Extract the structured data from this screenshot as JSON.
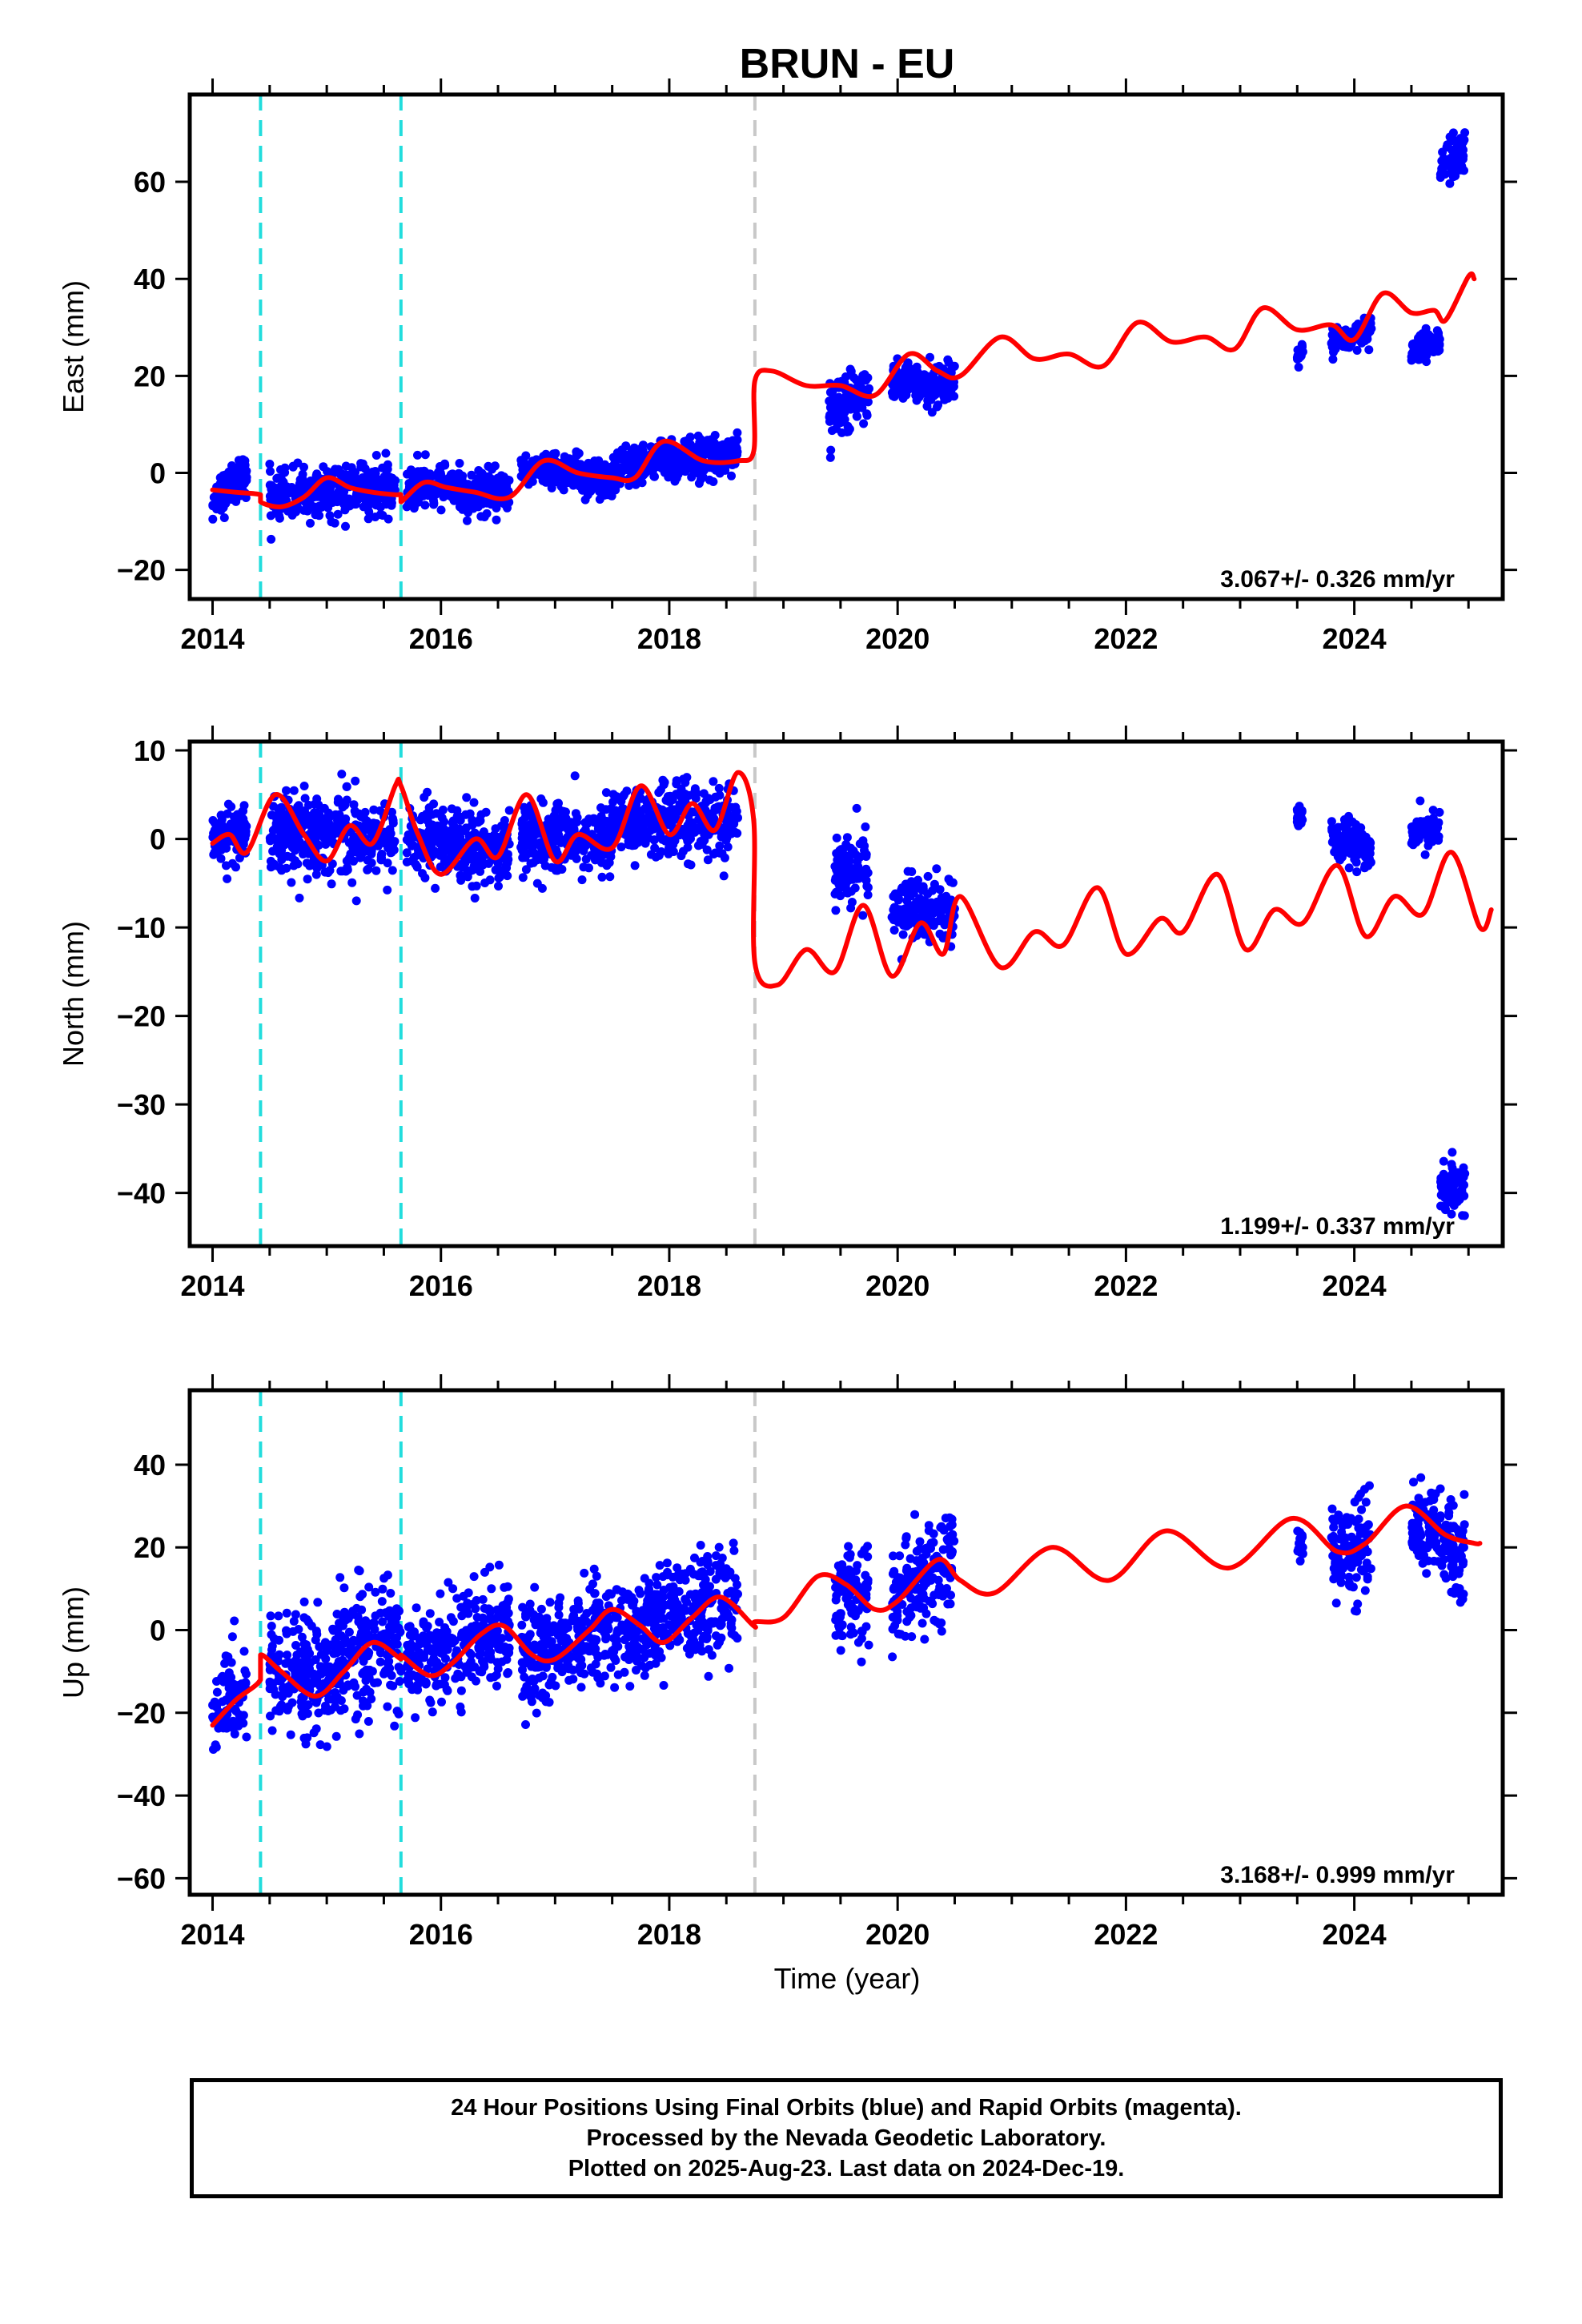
{
  "figure": {
    "title": "BRUN - EU",
    "x_axis_label": "Time (year)",
    "caption": [
      "24 Hour Positions Using Final Orbits (blue) and Rapid Orbits (magenta).",
      "Processed by the Nevada Geodetic Laboratory.",
      "Plotted on 2025-Aug-23. Last data on 2024-Dec-19."
    ],
    "colors": {
      "points": "#0000ff",
      "model": "#ff0000",
      "equipment_change": "#22dddd",
      "earthquake_event": "#c8c8c8",
      "frame": "#000000"
    }
  },
  "chart_data": [
    {
      "type": "scatter",
      "panel": "east",
      "ylabel": "East (mm)",
      "xlabel": "",
      "xlim": [
        2013.8,
        2025.3
      ],
      "ylim": [
        -26,
        78
      ],
      "xticks": [
        2014,
        2016,
        2018,
        2020,
        2022,
        2024
      ],
      "yticks": [
        -20,
        0,
        20,
        40,
        60
      ],
      "rate_label": "3.067+/- 0.326 mm/yr",
      "vertical_lines": [
        {
          "x": 2014.42,
          "style": "equipment_change"
        },
        {
          "x": 2015.65,
          "style": "equipment_change"
        },
        {
          "x": 2018.75,
          "style": "earthquake_event"
        }
      ],
      "clusters": [
        {
          "x": [
            2014.0,
            2014.3
          ],
          "y": [
            -6,
            0
          ],
          "spread": 2.2
        },
        {
          "x": [
            2014.5,
            2015.6
          ],
          "y": [
            -5,
            -3
          ],
          "spread": 2.5
        },
        {
          "x": [
            2015.7,
            2016.6
          ],
          "y": [
            -3,
            -4
          ],
          "spread": 2.2
        },
        {
          "x": [
            2016.7,
            2017.5
          ],
          "y": [
            1,
            -1
          ],
          "spread": 1.8
        },
        {
          "x": [
            2017.5,
            2018.6
          ],
          "y": [
            1,
            4
          ],
          "spread": 2.0
        },
        {
          "x": [
            2019.4,
            2019.75
          ],
          "y": [
            13,
            17
          ],
          "spread": 3.0
        },
        {
          "x": [
            2019.95,
            2020.5
          ],
          "y": [
            19,
            18
          ],
          "spread": 2.0
        },
        {
          "x": [
            2023.5,
            2023.55
          ],
          "y": [
            24,
            25
          ],
          "spread": 1.0
        },
        {
          "x": [
            2023.8,
            2024.15
          ],
          "y": [
            27,
            29
          ],
          "spread": 1.5
        },
        {
          "x": [
            2024.5,
            2024.75
          ],
          "y": [
            25,
            27
          ],
          "spread": 1.5
        },
        {
          "x": [
            2024.75,
            2024.97
          ],
          "y": [
            62,
            67
          ],
          "spread": 2.5
        }
      ],
      "model_points": [
        [
          2014.0,
          -3.5
        ],
        [
          2014.2,
          -4.0
        ],
        [
          2014.42,
          -4.5
        ],
        [
          2014.42,
          -6.0
        ],
        [
          2014.6,
          -7.0
        ],
        [
          2014.8,
          -5.0
        ],
        [
          2015.0,
          -1.0
        ],
        [
          2015.2,
          -3.0
        ],
        [
          2015.4,
          -4.0
        ],
        [
          2015.6,
          -4.5
        ],
        [
          2015.65,
          -4.5
        ],
        [
          2015.65,
          -6.0
        ],
        [
          2015.85,
          -2.0
        ],
        [
          2016.05,
          -3.0
        ],
        [
          2016.3,
          -4.0
        ],
        [
          2016.6,
          -5.0
        ],
        [
          2016.9,
          2.5
        ],
        [
          2017.2,
          0.0
        ],
        [
          2017.5,
          -1.0
        ],
        [
          2017.7,
          -1.0
        ],
        [
          2017.95,
          6.5
        ],
        [
          2018.3,
          2.5
        ],
        [
          2018.6,
          2.5
        ],
        [
          2018.74,
          4.5
        ],
        [
          2018.75,
          19.0
        ],
        [
          2018.9,
          21.0
        ],
        [
          2019.2,
          18.0
        ],
        [
          2019.5,
          18.0
        ],
        [
          2019.8,
          16.0
        ],
        [
          2020.1,
          24.5
        ],
        [
          2020.35,
          21.0
        ],
        [
          2020.55,
          20.0
        ],
        [
          2020.9,
          28.0
        ],
        [
          2021.2,
          23.5
        ],
        [
          2021.5,
          24.5
        ],
        [
          2021.8,
          22.0
        ],
        [
          2022.1,
          31.0
        ],
        [
          2022.4,
          27.0
        ],
        [
          2022.7,
          28.0
        ],
        [
          2022.95,
          25.5
        ],
        [
          2023.2,
          34.0
        ],
        [
          2023.5,
          29.5
        ],
        [
          2023.8,
          30.5
        ],
        [
          2024.0,
          27.5
        ],
        [
          2024.25,
          37.0
        ],
        [
          2024.5,
          33.0
        ],
        [
          2024.7,
          33.5
        ],
        [
          2024.8,
          31.5
        ],
        [
          2025.0,
          40.5
        ],
        [
          2025.05,
          40.0
        ]
      ]
    },
    {
      "type": "scatter",
      "panel": "north",
      "ylabel": "North (mm)",
      "xlabel": "",
      "xlim": [
        2013.8,
        2025.3
      ],
      "ylim": [
        -46,
        11
      ],
      "xticks": [
        2014,
        2016,
        2018,
        2020,
        2022,
        2024
      ],
      "yticks": [
        -40,
        -30,
        -20,
        -10,
        0,
        10
      ],
      "rate_label": "1.199+/- 0.337 mm/yr",
      "vertical_lines": [
        {
          "x": 2014.42,
          "style": "equipment_change"
        },
        {
          "x": 2015.65,
          "style": "equipment_change"
        },
        {
          "x": 2018.75,
          "style": "earthquake_event"
        }
      ],
      "clusters": [
        {
          "x": [
            2014.0,
            2014.3
          ],
          "y": [
            0,
            0
          ],
          "spread": 1.5
        },
        {
          "x": [
            2014.5,
            2015.6
          ],
          "y": [
            1,
            0
          ],
          "spread": 2.2
        },
        {
          "x": [
            2015.7,
            2016.6
          ],
          "y": [
            0,
            -1
          ],
          "spread": 2.0
        },
        {
          "x": [
            2016.7,
            2017.5
          ],
          "y": [
            0,
            0
          ],
          "spread": 2.0
        },
        {
          "x": [
            2017.5,
            2018.6
          ],
          "y": [
            2,
            2
          ],
          "spread": 2.0
        },
        {
          "x": [
            2019.45,
            2019.75
          ],
          "y": [
            -4,
            -3
          ],
          "spread": 1.8
        },
        {
          "x": [
            2019.95,
            2020.5
          ],
          "y": [
            -8,
            -8
          ],
          "spread": 1.8
        },
        {
          "x": [
            2023.5,
            2023.55
          ],
          "y": [
            3,
            2
          ],
          "spread": 0.8
        },
        {
          "x": [
            2023.8,
            2024.15
          ],
          "y": [
            0,
            -1
          ],
          "spread": 1.2
        },
        {
          "x": [
            2024.5,
            2024.75
          ],
          "y": [
            1,
            1
          ],
          "spread": 1.0
        },
        {
          "x": [
            2024.75,
            2024.97
          ],
          "y": [
            -39,
            -40
          ],
          "spread": 1.8
        }
      ],
      "model_points": [
        [
          2014.0,
          -0.5
        ],
        [
          2014.15,
          0.5
        ],
        [
          2014.3,
          -1.5
        ],
        [
          2014.55,
          5.0
        ],
        [
          2014.8,
          0.5
        ],
        [
          2015.0,
          -2.5
        ],
        [
          2015.2,
          1.5
        ],
        [
          2015.4,
          -0.5
        ],
        [
          2015.6,
          6.0
        ],
        [
          2015.65,
          6.0
        ],
        [
          2015.8,
          0.5
        ],
        [
          2016.0,
          -4.0
        ],
        [
          2016.3,
          0.0
        ],
        [
          2016.5,
          -2.0
        ],
        [
          2016.75,
          5.0
        ],
        [
          2017.0,
          -2.5
        ],
        [
          2017.2,
          0.5
        ],
        [
          2017.5,
          -1.0
        ],
        [
          2017.75,
          6.0
        ],
        [
          2018.0,
          0.5
        ],
        [
          2018.2,
          4.0
        ],
        [
          2018.4,
          1.0
        ],
        [
          2018.6,
          7.5
        ],
        [
          2018.74,
          2.0
        ],
        [
          2018.75,
          -14.0
        ],
        [
          2018.95,
          -16.5
        ],
        [
          2019.2,
          -12.5
        ],
        [
          2019.45,
          -15.0
        ],
        [
          2019.7,
          -7.5
        ],
        [
          2019.95,
          -15.5
        ],
        [
          2020.2,
          -9.5
        ],
        [
          2020.4,
          -13.0
        ],
        [
          2020.55,
          -6.5
        ],
        [
          2020.9,
          -14.5
        ],
        [
          2021.2,
          -10.5
        ],
        [
          2021.45,
          -12.0
        ],
        [
          2021.75,
          -5.5
        ],
        [
          2022.0,
          -13.0
        ],
        [
          2022.3,
          -9.0
        ],
        [
          2022.5,
          -10.5
        ],
        [
          2022.8,
          -4.0
        ],
        [
          2023.05,
          -12.5
        ],
        [
          2023.3,
          -8.0
        ],
        [
          2023.55,
          -9.5
        ],
        [
          2023.85,
          -3.0
        ],
        [
          2024.1,
          -11.0
        ],
        [
          2024.35,
          -6.5
        ],
        [
          2024.6,
          -8.5
        ],
        [
          2024.85,
          -1.5
        ],
        [
          2025.1,
          -10.0
        ],
        [
          2025.2,
          -8.0
        ]
      ]
    },
    {
      "type": "scatter",
      "panel": "up",
      "ylabel": "Up (mm)",
      "xlabel": "Time (year)",
      "xlim": [
        2013.8,
        2025.3
      ],
      "ylim": [
        -64,
        58
      ],
      "xticks": [
        2014,
        2016,
        2018,
        2020,
        2022,
        2024
      ],
      "yticks": [
        -60,
        -40,
        -20,
        0,
        20,
        40
      ],
      "rate_label": "3.168+/- 0.999 mm/yr",
      "vertical_lines": [
        {
          "x": 2014.42,
          "style": "equipment_change"
        },
        {
          "x": 2015.65,
          "style": "equipment_change"
        },
        {
          "x": 2018.75,
          "style": "earthquake_event"
        }
      ],
      "clusters": [
        {
          "x": [
            2014.0,
            2014.3
          ],
          "y": [
            -22,
            -12
          ],
          "spread": 6.0
        },
        {
          "x": [
            2014.5,
            2015.1
          ],
          "y": [
            -10,
            -12
          ],
          "spread": 7.0
        },
        {
          "x": [
            2015.1,
            2015.65
          ],
          "y": [
            -5,
            -4
          ],
          "spread": 7.5
        },
        {
          "x": [
            2015.7,
            2016.6
          ],
          "y": [
            -7,
            0
          ],
          "spread": 6.0
        },
        {
          "x": [
            2016.7,
            2017.5
          ],
          "y": [
            -8,
            2
          ],
          "spread": 6.0
        },
        {
          "x": [
            2017.5,
            2018.6
          ],
          "y": [
            -2,
            9
          ],
          "spread": 6.0
        },
        {
          "x": [
            2019.45,
            2019.75
          ],
          "y": [
            8,
            7
          ],
          "spread": 6.0
        },
        {
          "x": [
            2019.95,
            2020.5
          ],
          "y": [
            9,
            15
          ],
          "spread": 6.0
        },
        {
          "x": [
            2023.5,
            2023.55
          ],
          "y": [
            22,
            20
          ],
          "spread": 3.0
        },
        {
          "x": [
            2023.8,
            2024.15
          ],
          "y": [
            18,
            20
          ],
          "spread": 6.0
        },
        {
          "x": [
            2024.5,
            2024.75
          ],
          "y": [
            27,
            24
          ],
          "spread": 5.0
        },
        {
          "x": [
            2024.75,
            2024.97
          ],
          "y": [
            20,
            17
          ],
          "spread": 6.0
        }
      ],
      "model_points": [
        [
          2014.0,
          -23.0
        ],
        [
          2014.2,
          -17.0
        ],
        [
          2014.42,
          -12.0
        ],
        [
          2014.42,
          -6.0
        ],
        [
          2014.6,
          -10.0
        ],
        [
          2014.9,
          -16.0
        ],
        [
          2015.15,
          -10.0
        ],
        [
          2015.4,
          -3.0
        ],
        [
          2015.65,
          -7.0
        ],
        [
          2015.65,
          -6.0
        ],
        [
          2015.9,
          -11.0
        ],
        [
          2016.1,
          -8.0
        ],
        [
          2016.35,
          -1.0
        ],
        [
          2016.55,
          1.0
        ],
        [
          2016.8,
          -6.0
        ],
        [
          2017.0,
          -7.0
        ],
        [
          2017.3,
          0.0
        ],
        [
          2017.5,
          5.0
        ],
        [
          2017.75,
          1.0
        ],
        [
          2017.95,
          -3.0
        ],
        [
          2018.2,
          3.0
        ],
        [
          2018.45,
          8.0
        ],
        [
          2018.74,
          1.0
        ],
        [
          2018.75,
          2.0
        ],
        [
          2019.0,
          3.0
        ],
        [
          2019.3,
          13.0
        ],
        [
          2019.55,
          11.0
        ],
        [
          2019.8,
          5.0
        ],
        [
          2020.0,
          7.0
        ],
        [
          2020.35,
          17.0
        ],
        [
          2020.55,
          12.0
        ],
        [
          2020.85,
          9.0
        ],
        [
          2021.35,
          20.0
        ],
        [
          2021.85,
          12.0
        ],
        [
          2022.35,
          24.0
        ],
        [
          2022.9,
          15.0
        ],
        [
          2023.45,
          27.0
        ],
        [
          2023.85,
          19.0
        ],
        [
          2024.1,
          21.0
        ],
        [
          2024.45,
          30.0
        ],
        [
          2024.8,
          23.0
        ],
        [
          2025.05,
          21.0
        ],
        [
          2025.1,
          21.0
        ]
      ]
    }
  ]
}
